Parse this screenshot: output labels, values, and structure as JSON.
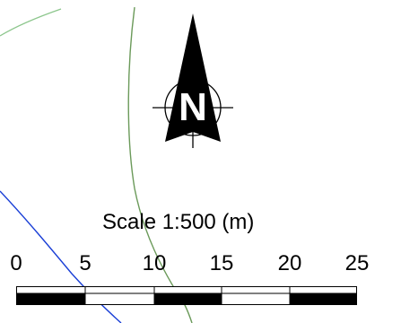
{
  "north_arrow": {
    "label": "N",
    "icon": "north-arrow-icon"
  },
  "scale_bar": {
    "title": "Scale  1:500 (m)",
    "ticks": [
      "0",
      "5",
      "10",
      "15",
      "20",
      "25"
    ],
    "segments": [
      {
        "color": "#000000"
      },
      {
        "color": "#ffffff"
      },
      {
        "color": "#000000"
      },
      {
        "color": "#ffffff"
      },
      {
        "color": "#000000"
      }
    ]
  },
  "colors": {
    "green_line": "#6b9a5a",
    "light_green_line": "#8cc68c",
    "blue_line": "#1a3fd6",
    "ink": "#000000"
  }
}
